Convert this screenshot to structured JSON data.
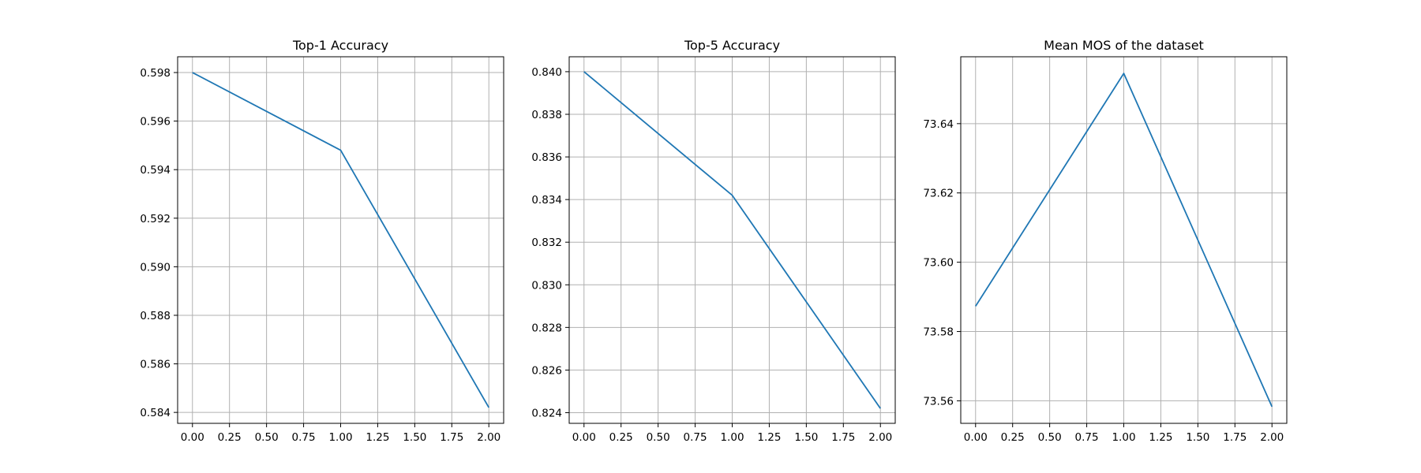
{
  "colors": {
    "series": "#1f77b4",
    "grid": "#b0b0b0",
    "axis": "#000000"
  },
  "chart_data": [
    {
      "type": "line",
      "title": "Top-1 Accuracy",
      "xlabel": "",
      "ylabel": "",
      "grid": true,
      "x": [
        0,
        1,
        2
      ],
      "series": [
        {
          "values": [
            0.598,
            0.5948,
            0.5842
          ]
        }
      ],
      "xlim": [
        -0.1,
        2.1
      ],
      "ylim": [
        0.58355,
        0.59865
      ],
      "xticks": [
        0,
        0.25,
        0.5,
        0.75,
        1,
        1.25,
        1.5,
        1.75,
        2
      ],
      "xtick_labels": [
        "0.00",
        "0.25",
        "0.50",
        "0.75",
        "1.00",
        "1.25",
        "1.50",
        "1.75",
        "2.00"
      ],
      "yticks": [
        0.584,
        0.586,
        0.588,
        0.59,
        0.592,
        0.594,
        0.596,
        0.598
      ],
      "ytick_labels": [
        "0.584",
        "0.586",
        "0.588",
        "0.590",
        "0.592",
        "0.594",
        "0.596",
        "0.598"
      ]
    },
    {
      "type": "line",
      "title": "Top-5 Accuracy",
      "xlabel": "",
      "ylabel": "",
      "grid": true,
      "x": [
        0,
        1,
        2
      ],
      "series": [
        {
          "values": [
            0.84,
            0.8342,
            0.8242
          ]
        }
      ],
      "xlim": [
        -0.1,
        2.1
      ],
      "ylim": [
        0.8235,
        0.8407
      ],
      "xticks": [
        0,
        0.25,
        0.5,
        0.75,
        1,
        1.25,
        1.5,
        1.75,
        2
      ],
      "xtick_labels": [
        "0.00",
        "0.25",
        "0.50",
        "0.75",
        "1.00",
        "1.25",
        "1.50",
        "1.75",
        "2.00"
      ],
      "yticks": [
        0.824,
        0.826,
        0.828,
        0.83,
        0.832,
        0.834,
        0.836,
        0.838,
        0.84
      ],
      "ytick_labels": [
        "0.824",
        "0.826",
        "0.828",
        "0.830",
        "0.832",
        "0.834",
        "0.836",
        "0.838",
        "0.840"
      ]
    },
    {
      "type": "line",
      "title": "Mean MOS of the dataset",
      "xlabel": "",
      "ylabel": "",
      "grid": true,
      "x": [
        0,
        1,
        2
      ],
      "series": [
        {
          "values": [
            73.5873,
            73.6545,
            73.5583
          ]
        }
      ],
      "xlim": [
        -0.1,
        2.1
      ],
      "ylim": [
        73.5535,
        73.6593
      ],
      "xticks": [
        0,
        0.25,
        0.5,
        0.75,
        1,
        1.25,
        1.5,
        1.75,
        2
      ],
      "xtick_labels": [
        "0.00",
        "0.25",
        "0.50",
        "0.75",
        "1.00",
        "1.25",
        "1.50",
        "1.75",
        "2.00"
      ],
      "yticks": [
        73.56,
        73.58,
        73.6,
        73.62,
        73.64
      ],
      "ytick_labels": [
        "73.56",
        "73.58",
        "73.60",
        "73.62",
        "73.64"
      ]
    }
  ]
}
